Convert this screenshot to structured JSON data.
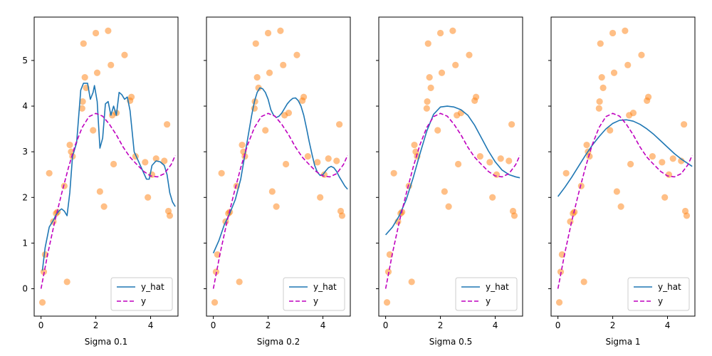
{
  "chart_data": {
    "type": "scatter",
    "xlim": [
      -0.25,
      5.0
    ],
    "ylim": [
      -0.6,
      5.95
    ],
    "x_ticks": [
      0,
      2,
      4
    ],
    "y_ticks": [
      0,
      1,
      2,
      3,
      4,
      5
    ],
    "legend": {
      "placement": "lower right",
      "entries": [
        "y_hat",
        "y"
      ]
    },
    "grid": false,
    "colors": {
      "y_hat": "#1f77b4",
      "y": "#bf00bf",
      "points": "#ff7f0e"
    },
    "points": {
      "x": [
        0.05,
        0.1,
        0.15,
        0.3,
        0.45,
        0.55,
        0.6,
        0.85,
        0.95,
        1.05,
        1.1,
        1.15,
        1.5,
        1.52,
        1.55,
        1.6,
        1.65,
        1.9,
        2.0,
        2.05,
        2.15,
        2.3,
        2.45,
        2.55,
        2.6,
        2.65,
        2.75,
        3.05,
        3.25,
        3.3,
        3.45,
        3.8,
        3.9,
        4.05,
        4.2,
        4.5,
        4.6,
        4.65,
        4.7
      ],
      "y": [
        -0.3,
        0.37,
        0.75,
        2.53,
        1.47,
        1.65,
        1.68,
        2.25,
        0.15,
        3.15,
        3.0,
        2.9,
        3.95,
        4.1,
        5.37,
        4.63,
        4.4,
        3.47,
        5.6,
        4.73,
        2.13,
        1.8,
        5.65,
        4.9,
        3.8,
        2.73,
        3.85,
        5.12,
        4.12,
        4.2,
        2.9,
        2.77,
        2.0,
        2.5,
        2.85,
        2.8,
        3.6,
        1.7,
        1.6
      ]
    },
    "y_true": {
      "name": "y",
      "x": [
        0.0,
        0.25,
        0.5,
        0.75,
        1.0,
        1.25,
        1.5,
        1.75,
        2.0,
        2.25,
        2.5,
        2.75,
        3.0,
        3.25,
        3.5,
        3.75,
        4.0,
        4.25,
        4.5,
        4.75,
        4.9
      ],
      "y": [
        0.0,
        0.78,
        1.47,
        2.08,
        2.65,
        3.15,
        3.53,
        3.77,
        3.84,
        3.78,
        3.6,
        3.37,
        3.1,
        2.88,
        2.72,
        2.57,
        2.47,
        2.45,
        2.52,
        2.72,
        2.92
      ]
    },
    "subplots": [
      {
        "xlabel": "Sigma 0.1",
        "series": [
          {
            "name": "y_hat",
            "x": [
              0.05,
              0.15,
              0.3,
              0.45,
              0.55,
              0.65,
              0.75,
              0.85,
              0.95,
              1.05,
              1.15,
              1.3,
              1.45,
              1.55,
              1.7,
              1.8,
              1.9,
              1.95,
              2.05,
              2.15,
              2.25,
              2.35,
              2.45,
              2.55,
              2.65,
              2.75,
              2.85,
              2.95,
              3.05,
              3.15,
              3.25,
              3.4,
              3.55,
              3.7,
              3.85,
              3.95,
              4.05,
              4.2,
              4.35,
              4.5,
              4.6,
              4.7,
              4.8,
              4.9
            ],
            "y": [
              0.4,
              0.9,
              1.35,
              1.5,
              1.62,
              1.7,
              1.75,
              1.7,
              1.6,
              2.1,
              2.9,
              3.2,
              4.35,
              4.5,
              4.5,
              4.15,
              4.3,
              4.45,
              4.1,
              3.08,
              3.3,
              4.05,
              4.1,
              3.8,
              4.0,
              3.8,
              4.3,
              4.25,
              4.15,
              4.2,
              3.9,
              3.0,
              2.8,
              2.6,
              2.4,
              2.4,
              2.7,
              2.8,
              2.78,
              2.7,
              2.5,
              2.1,
              1.9,
              1.8
            ]
          }
        ]
      },
      {
        "xlabel": "Sigma 0.2",
        "series": [
          {
            "name": "y_hat",
            "x": [
              0.0,
              0.2,
              0.4,
              0.6,
              0.8,
              1.0,
              1.2,
              1.4,
              1.5,
              1.6,
              1.7,
              1.8,
              1.9,
              2.0,
              2.1,
              2.2,
              2.3,
              2.4,
              2.5,
              2.6,
              2.7,
              2.8,
              2.9,
              3.0,
              3.1,
              3.2,
              3.3,
              3.4,
              3.5,
              3.6,
              3.7,
              3.8,
              3.9,
              4.0,
              4.1,
              4.2,
              4.3,
              4.4,
              4.5,
              4.6,
              4.7,
              4.8,
              4.9
            ],
            "y": [
              0.78,
              1.05,
              1.4,
              1.65,
              1.95,
              2.4,
              3.1,
              3.8,
              4.1,
              4.3,
              4.4,
              4.38,
              4.3,
              4.15,
              3.92,
              3.8,
              3.75,
              3.78,
              3.85,
              3.95,
              4.05,
              4.12,
              4.17,
              4.18,
              4.12,
              4.0,
              3.8,
              3.52,
              3.22,
              2.95,
              2.7,
              2.55,
              2.48,
              2.5,
              2.58,
              2.65,
              2.68,
              2.65,
              2.57,
              2.45,
              2.35,
              2.25,
              2.18
            ]
          }
        ]
      },
      {
        "xlabel": "Sigma 0.5",
        "series": [
          {
            "name": "y_hat",
            "x": [
              0.0,
              0.25,
              0.5,
              0.75,
              1.0,
              1.25,
              1.5,
              1.75,
              2.0,
              2.25,
              2.5,
              2.75,
              3.0,
              3.25,
              3.5,
              3.75,
              4.0,
              4.25,
              4.5,
              4.75,
              4.9
            ],
            "y": [
              1.18,
              1.35,
              1.6,
              1.95,
              2.42,
              2.95,
              3.45,
              3.82,
              3.98,
              4.0,
              3.98,
              3.92,
              3.8,
              3.58,
              3.3,
              3.02,
              2.78,
              2.6,
              2.5,
              2.45,
              2.43
            ]
          }
        ]
      },
      {
        "xlabel": "Sigma 1",
        "series": [
          {
            "name": "y_hat",
            "x": [
              0.0,
              0.25,
              0.5,
              0.75,
              1.0,
              1.25,
              1.5,
              1.75,
              2.0,
              2.25,
              2.5,
              2.75,
              3.0,
              3.25,
              3.5,
              3.75,
              4.0,
              4.25,
              4.5,
              4.75,
              4.9
            ],
            "y": [
              2.02,
              2.22,
              2.44,
              2.68,
              2.92,
              3.14,
              3.33,
              3.5,
              3.62,
              3.69,
              3.7,
              3.67,
              3.6,
              3.5,
              3.38,
              3.24,
              3.1,
              2.96,
              2.84,
              2.74,
              2.68
            ]
          }
        ]
      }
    ]
  }
}
